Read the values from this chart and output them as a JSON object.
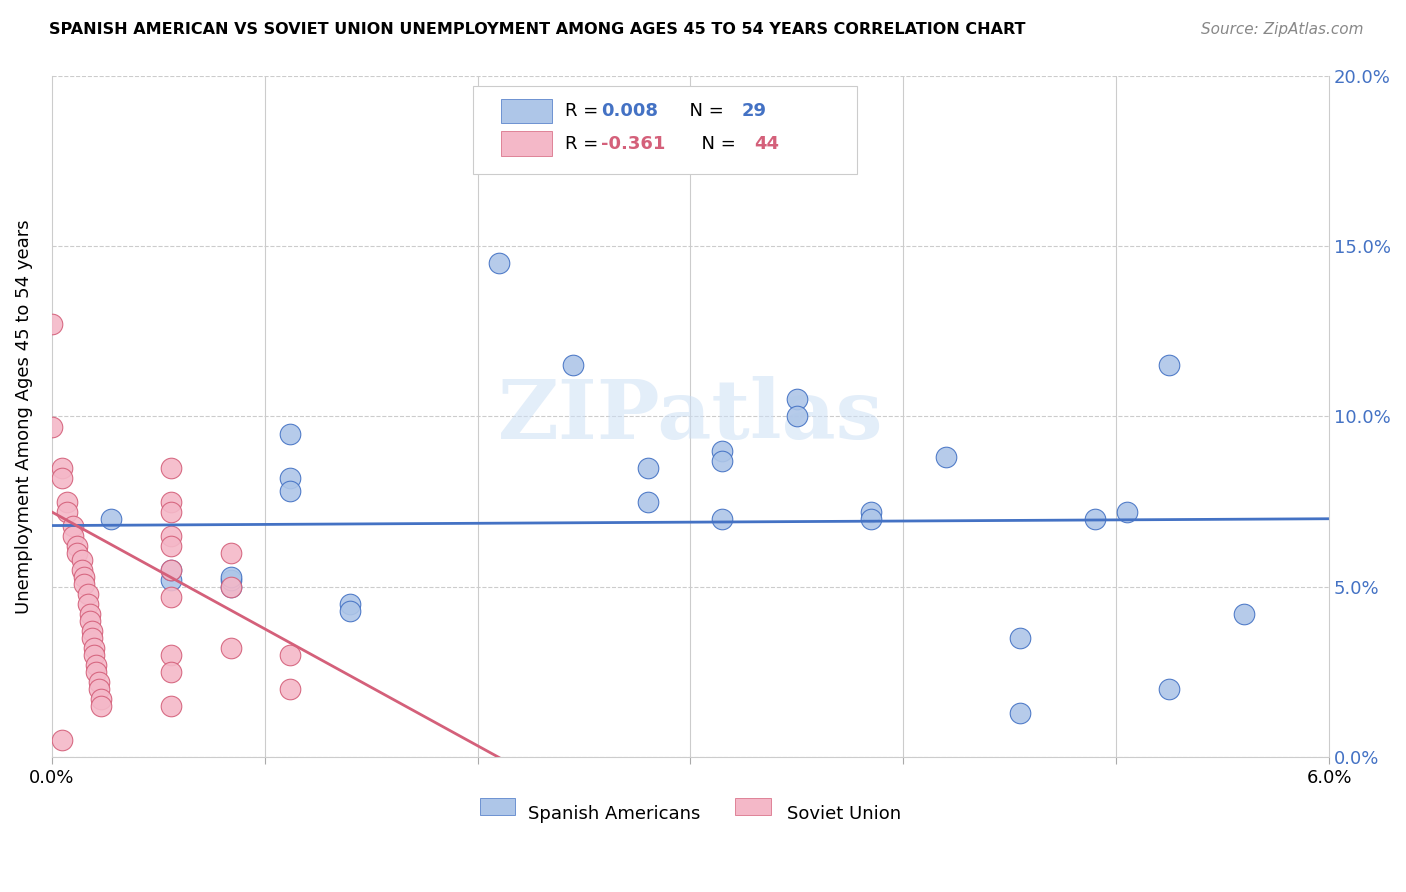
{
  "title": "SPANISH AMERICAN VS SOVIET UNION UNEMPLOYMENT AMONG AGES 45 TO 54 YEARS CORRELATION CHART",
  "source": "Source: ZipAtlas.com",
  "ylabel": "Unemployment Among Ages 45 to 54 years",
  "xlim": [
    0.0,
    6.0
  ],
  "ylim": [
    0.0,
    20.0
  ],
  "color_blue": "#aec6e8",
  "color_blue_line": "#4472c4",
  "color_pink": "#f4b8c8",
  "color_pink_line": "#d4607a",
  "color_right_axis": "#4472c4",
  "watermark": "ZIPatlas",
  "blue_points": [
    [
      0.28,
      7.0
    ],
    [
      0.56,
      5.2
    ],
    [
      0.56,
      5.5
    ],
    [
      0.84,
      5.0
    ],
    [
      0.84,
      5.2
    ],
    [
      0.84,
      5.3
    ],
    [
      1.12,
      9.5
    ],
    [
      1.12,
      8.2
    ],
    [
      1.12,
      7.8
    ],
    [
      1.4,
      4.5
    ],
    [
      1.4,
      4.3
    ],
    [
      2.1,
      14.5
    ],
    [
      2.45,
      11.5
    ],
    [
      2.8,
      8.5
    ],
    [
      2.8,
      7.5
    ],
    [
      3.15,
      9.0
    ],
    [
      3.15,
      8.7
    ],
    [
      3.15,
      7.0
    ],
    [
      3.5,
      10.5
    ],
    [
      3.5,
      10.0
    ],
    [
      3.85,
      7.2
    ],
    [
      3.85,
      7.0
    ],
    [
      4.2,
      8.8
    ],
    [
      4.55,
      3.5
    ],
    [
      4.9,
      7.0
    ],
    [
      5.05,
      7.2
    ],
    [
      5.25,
      11.5
    ],
    [
      5.6,
      4.2
    ],
    [
      5.25,
      2.0
    ],
    [
      4.55,
      1.3
    ]
  ],
  "pink_points": [
    [
      0.0,
      12.7
    ],
    [
      0.0,
      9.7
    ],
    [
      0.05,
      8.5
    ],
    [
      0.05,
      8.2
    ],
    [
      0.07,
      7.5
    ],
    [
      0.07,
      7.2
    ],
    [
      0.1,
      6.8
    ],
    [
      0.1,
      6.5
    ],
    [
      0.12,
      6.2
    ],
    [
      0.12,
      6.0
    ],
    [
      0.14,
      5.8
    ],
    [
      0.14,
      5.5
    ],
    [
      0.15,
      5.3
    ],
    [
      0.15,
      5.1
    ],
    [
      0.17,
      4.8
    ],
    [
      0.17,
      4.5
    ],
    [
      0.18,
      4.2
    ],
    [
      0.18,
      4.0
    ],
    [
      0.19,
      3.7
    ],
    [
      0.19,
      3.5
    ],
    [
      0.2,
      3.2
    ],
    [
      0.2,
      3.0
    ],
    [
      0.21,
      2.7
    ],
    [
      0.21,
      2.5
    ],
    [
      0.22,
      2.2
    ],
    [
      0.22,
      2.0
    ],
    [
      0.23,
      1.7
    ],
    [
      0.23,
      1.5
    ],
    [
      0.05,
      0.5
    ],
    [
      0.56,
      8.5
    ],
    [
      0.56,
      7.5
    ],
    [
      0.56,
      7.2
    ],
    [
      0.56,
      6.5
    ],
    [
      0.56,
      6.2
    ],
    [
      0.56,
      5.5
    ],
    [
      0.56,
      4.7
    ],
    [
      0.56,
      3.0
    ],
    [
      0.56,
      2.5
    ],
    [
      0.56,
      1.5
    ],
    [
      0.84,
      6.0
    ],
    [
      0.84,
      5.0
    ],
    [
      0.84,
      3.2
    ],
    [
      1.12,
      3.0
    ],
    [
      1.12,
      2.0
    ]
  ],
  "blue_line": [
    [
      0.0,
      6.8
    ],
    [
      6.0,
      7.0
    ]
  ],
  "pink_line": [
    [
      0.0,
      7.2
    ],
    [
      2.1,
      0.0
    ]
  ]
}
